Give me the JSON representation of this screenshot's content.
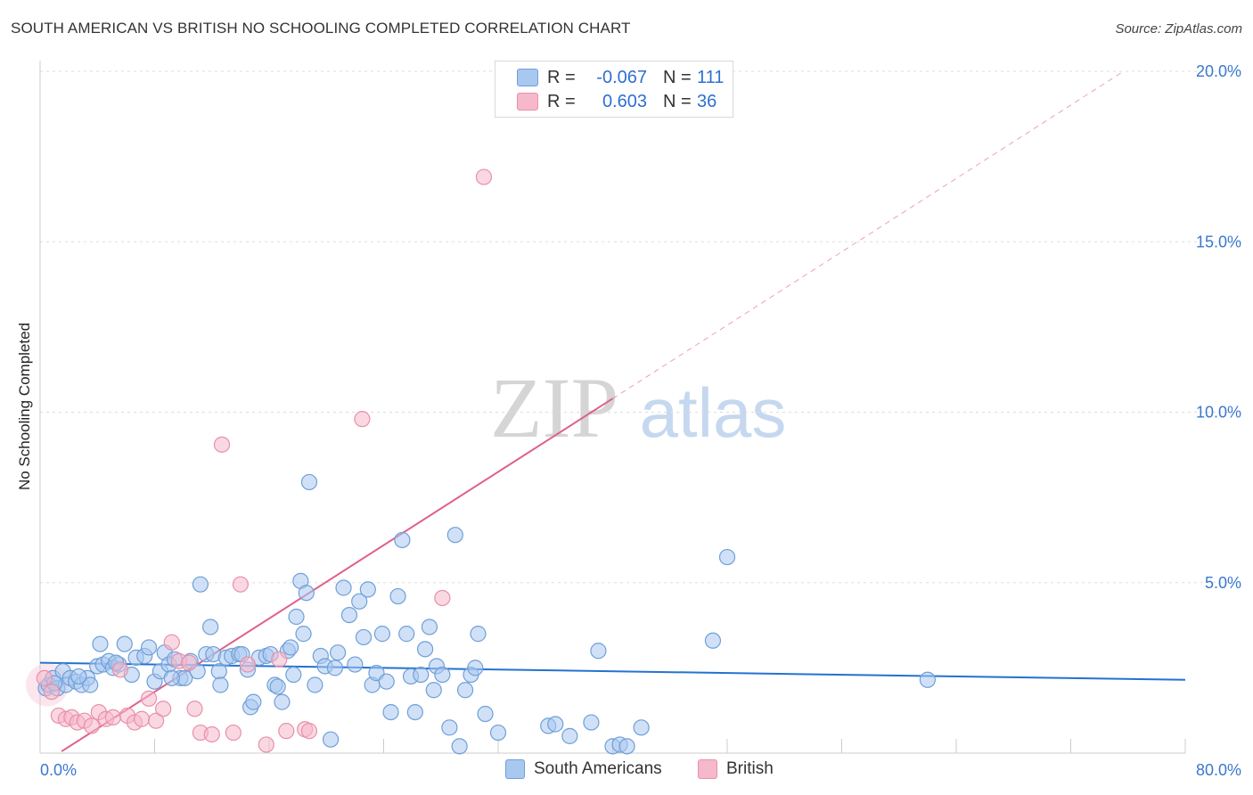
{
  "title": "SOUTH AMERICAN VS BRITISH NO SCHOOLING COMPLETED CORRELATION CHART",
  "source": "Source: ZipAtlas.com",
  "legend": {
    "rows": [
      {
        "r_label": "R =",
        "r_value": "-0.067",
        "n_label": "N =",
        "n_value": "111"
      },
      {
        "r_label": "R =",
        "r_value": "0.603",
        "n_label": "N =",
        "n_value": "36"
      }
    ]
  },
  "bottom_legend": {
    "series1": "South Americans",
    "series2": "British"
  },
  "colors": {
    "blue_fill": "#a9c8f0",
    "blue_stroke": "#6f9fd8",
    "blue_line": "#2372d0",
    "pink_fill": "#f6b8cb",
    "pink_stroke": "#e890ab",
    "pink_line": "#e0608a",
    "grid": "#dddddd",
    "tick_text": "#3a78d0"
  },
  "watermark": {
    "zip": "ZIP",
    "atlas": "atlas"
  },
  "chart_data": {
    "type": "scatter",
    "title": "SOUTH AMERICAN VS BRITISH NO SCHOOLING COMPLETED CORRELATION CHART",
    "xlabel": "",
    "ylabel": "No Schooling Completed",
    "xlim": [
      0,
      80
    ],
    "ylim": [
      0,
      20
    ],
    "x_tick_labels": [
      {
        "value": 0,
        "label": "0.0%"
      },
      {
        "value": 80,
        "label": "80.0%"
      }
    ],
    "y_tick_labels": [
      {
        "value": 5,
        "label": "5.0%"
      },
      {
        "value": 10,
        "label": "10.0%"
      },
      {
        "value": 15,
        "label": "15.0%"
      },
      {
        "value": 20,
        "label": "20.0%"
      }
    ],
    "series": [
      {
        "name": "South Americans",
        "color": "blue",
        "r": -0.067,
        "n": 111,
        "trend": {
          "x0": 0,
          "y0": 2.65,
          "x1": 80,
          "y1": 2.15
        },
        "points": [
          [
            0.4,
            1.9
          ],
          [
            0.6,
            2.0
          ],
          [
            0.9,
            2.2
          ],
          [
            1.2,
            1.9
          ],
          [
            1.6,
            2.4
          ],
          [
            1.8,
            2.0
          ],
          [
            2.1,
            2.2
          ],
          [
            2.5,
            2.1
          ],
          [
            2.9,
            2.0
          ],
          [
            3.3,
            2.2
          ],
          [
            3.5,
            2.0
          ],
          [
            4.0,
            2.55
          ],
          [
            4.2,
            3.2
          ],
          [
            4.4,
            2.6
          ],
          [
            4.8,
            2.7
          ],
          [
            5.1,
            2.5
          ],
          [
            5.5,
            2.6
          ],
          [
            5.9,
            3.2
          ],
          [
            6.4,
            2.3
          ],
          [
            6.7,
            2.8
          ],
          [
            7.3,
            2.85
          ],
          [
            7.6,
            3.1
          ],
          [
            8.0,
            2.1
          ],
          [
            8.4,
            2.4
          ],
          [
            8.7,
            2.95
          ],
          [
            9.0,
            2.6
          ],
          [
            9.4,
            2.75
          ],
          [
            9.8,
            2.2
          ],
          [
            10.1,
            2.2
          ],
          [
            10.5,
            2.7
          ],
          [
            11.0,
            2.4
          ],
          [
            11.2,
            4.95
          ],
          [
            11.6,
            2.9
          ],
          [
            11.9,
            3.7
          ],
          [
            12.1,
            2.9
          ],
          [
            12.5,
            2.4
          ],
          [
            12.6,
            2.0
          ],
          [
            13.0,
            2.8
          ],
          [
            13.4,
            2.85
          ],
          [
            13.9,
            2.9
          ],
          [
            14.1,
            2.9
          ],
          [
            14.5,
            2.45
          ],
          [
            14.7,
            1.35
          ],
          [
            14.9,
            1.5
          ],
          [
            15.3,
            2.8
          ],
          [
            15.8,
            2.85
          ],
          [
            16.1,
            2.9
          ],
          [
            16.4,
            2.0
          ],
          [
            16.6,
            1.95
          ],
          [
            16.9,
            1.5
          ],
          [
            17.3,
            3.0
          ],
          [
            17.5,
            3.1
          ],
          [
            17.7,
            2.3
          ],
          [
            17.9,
            4.0
          ],
          [
            18.2,
            5.05
          ],
          [
            18.4,
            3.5
          ],
          [
            18.6,
            4.7
          ],
          [
            18.8,
            7.95
          ],
          [
            19.2,
            2.0
          ],
          [
            19.6,
            2.85
          ],
          [
            19.9,
            2.55
          ],
          [
            20.3,
            0.4
          ],
          [
            20.6,
            2.5
          ],
          [
            20.8,
            2.95
          ],
          [
            21.2,
            4.85
          ],
          [
            21.6,
            4.05
          ],
          [
            22.0,
            2.6
          ],
          [
            22.3,
            4.45
          ],
          [
            22.6,
            3.4
          ],
          [
            22.9,
            4.8
          ],
          [
            23.2,
            2.0
          ],
          [
            23.5,
            2.35
          ],
          [
            23.9,
            3.5
          ],
          [
            24.2,
            2.1
          ],
          [
            24.5,
            1.2
          ],
          [
            25.0,
            4.6
          ],
          [
            25.3,
            6.25
          ],
          [
            25.6,
            3.5
          ],
          [
            25.9,
            2.25
          ],
          [
            26.2,
            1.2
          ],
          [
            26.6,
            2.3
          ],
          [
            26.9,
            3.05
          ],
          [
            27.2,
            3.7
          ],
          [
            27.5,
            1.85
          ],
          [
            27.7,
            2.55
          ],
          [
            28.1,
            2.3
          ],
          [
            28.6,
            0.75
          ],
          [
            29.0,
            6.4
          ],
          [
            29.3,
            0.2
          ],
          [
            29.7,
            1.85
          ],
          [
            30.1,
            2.3
          ],
          [
            30.4,
            2.5
          ],
          [
            30.6,
            3.5
          ],
          [
            31.1,
            1.15
          ],
          [
            32.0,
            0.6
          ],
          [
            35.5,
            0.8
          ],
          [
            36.0,
            0.85
          ],
          [
            37.0,
            0.5
          ],
          [
            38.5,
            0.9
          ],
          [
            39.0,
            3.0
          ],
          [
            40.0,
            0.2
          ],
          [
            40.5,
            0.25
          ],
          [
            41.0,
            0.2
          ],
          [
            42.0,
            0.75
          ],
          [
            47.0,
            3.3
          ],
          [
            48.0,
            5.75
          ],
          [
            62.0,
            2.15
          ],
          [
            1.0,
            2.05
          ],
          [
            2.7,
            2.25
          ],
          [
            5.3,
            2.65
          ],
          [
            9.2,
            2.2
          ]
        ]
      },
      {
        "name": "British",
        "color": "pink",
        "r": 0.603,
        "n": 36,
        "trend": {
          "x0": 1.5,
          "y0": 0.05,
          "x1": 40,
          "y1": 10.4
        },
        "trend_dashed": {
          "x0": 40,
          "y0": 10.4,
          "x1": 75.5,
          "y1": 19.95
        },
        "points": [
          [
            0.3,
            2.2
          ],
          [
            0.8,
            1.8
          ],
          [
            1.3,
            1.1
          ],
          [
            1.8,
            1.0
          ],
          [
            2.2,
            1.05
          ],
          [
            2.6,
            0.9
          ],
          [
            3.1,
            0.95
          ],
          [
            3.6,
            0.8
          ],
          [
            4.1,
            1.2
          ],
          [
            4.6,
            1.0
          ],
          [
            5.1,
            1.05
          ],
          [
            5.6,
            2.45
          ],
          [
            6.1,
            1.1
          ],
          [
            6.6,
            0.9
          ],
          [
            7.1,
            1.0
          ],
          [
            7.6,
            1.6
          ],
          [
            8.1,
            0.95
          ],
          [
            8.6,
            1.3
          ],
          [
            9.2,
            3.25
          ],
          [
            9.7,
            2.7
          ],
          [
            10.4,
            2.65
          ],
          [
            10.8,
            1.3
          ],
          [
            11.2,
            0.6
          ],
          [
            12.0,
            0.55
          ],
          [
            12.7,
            9.05
          ],
          [
            13.5,
            0.6
          ],
          [
            14.0,
            4.95
          ],
          [
            14.5,
            2.6
          ],
          [
            15.8,
            0.25
          ],
          [
            16.7,
            2.75
          ],
          [
            17.2,
            0.65
          ],
          [
            18.5,
            0.7
          ],
          [
            18.8,
            0.65
          ],
          [
            22.5,
            9.8
          ],
          [
            28.1,
            4.55
          ],
          [
            31.0,
            16.9
          ]
        ]
      }
    ]
  }
}
